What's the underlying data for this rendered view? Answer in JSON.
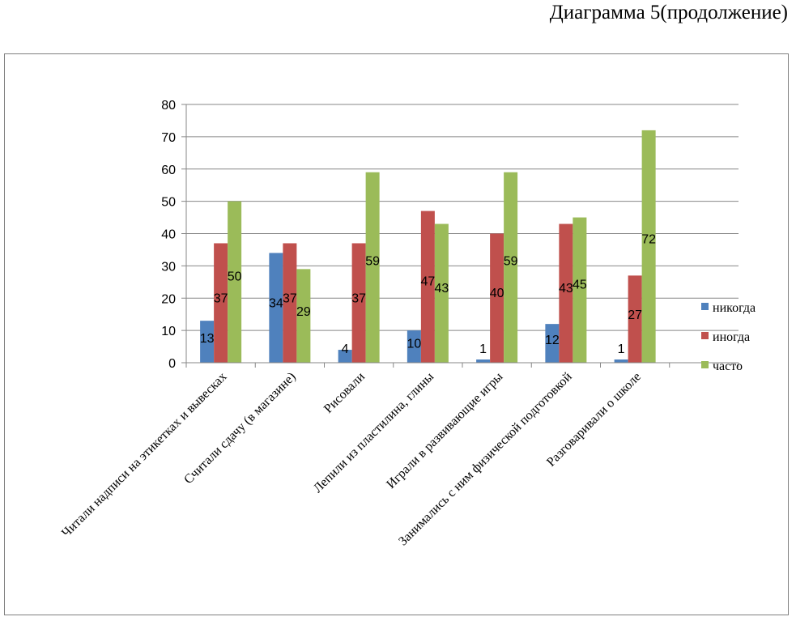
{
  "page": {
    "title": "Диаграмма 5(продолжение)"
  },
  "chart_data": {
    "type": "bar",
    "title": "",
    "xlabel": "",
    "ylabel": "",
    "ylim": [
      0,
      80
    ],
    "yticks": [
      0,
      10,
      20,
      30,
      40,
      50,
      60,
      70,
      80
    ],
    "grid": true,
    "legend_position": "right",
    "categories": [
      "Читали надписи на этикетках и вывесках",
      "Считали сдачу (в магазине)",
      "Рисовали",
      "Лепили из пластилина, глины",
      "Играли в развивающие игры",
      "Занимались с ним физической подготовкой",
      "Разговаривали о школе",
      ""
    ],
    "series": [
      {
        "name": "никогда",
        "color": "#4f81bd",
        "values": [
          13,
          34,
          4,
          10,
          1,
          12,
          1,
          null
        ]
      },
      {
        "name": "иногда",
        "color": "#c0504d",
        "values": [
          37,
          37,
          37,
          47,
          40,
          43,
          27,
          null
        ]
      },
      {
        "name": "часто",
        "color": "#9bbb59",
        "values": [
          50,
          29,
          59,
          43,
          59,
          45,
          72,
          null
        ]
      }
    ]
  }
}
